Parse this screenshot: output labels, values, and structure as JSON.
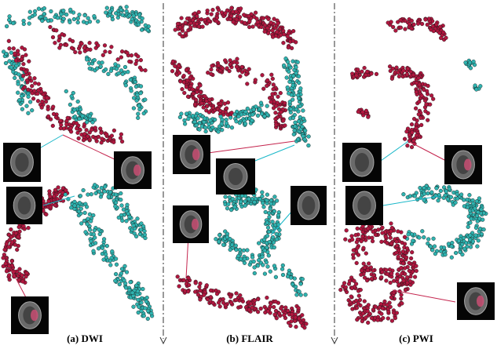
{
  "panels": [
    {
      "caption": "(a) DWI"
    },
    {
      "caption": "(b) FLAIR"
    },
    {
      "caption": "(c) PWI"
    }
  ]
}
